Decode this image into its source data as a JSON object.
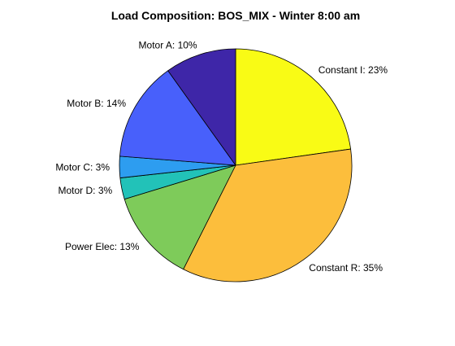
{
  "chart_data": {
    "type": "pie",
    "title": "Load Composition: BOS_MIX - Winter 8:00 am",
    "start_angle_deg": 90,
    "direction": "clockwise",
    "slices": [
      {
        "label": "Constant I: 23%",
        "value": 23,
        "color": "#f9fb15"
      },
      {
        "label": "Constant R: 35%",
        "value": 35,
        "color": "#fcbe3c"
      },
      {
        "label": "Power Elec: 13%",
        "value": 13,
        "color": "#7ecb5a"
      },
      {
        "label": "Motor D: 3%",
        "value": 3,
        "color": "#22c2b8"
      },
      {
        "label": "Motor C: 3%",
        "value": 3,
        "color": "#2d9df0"
      },
      {
        "label": "Motor B: 14%",
        "value": 14,
        "color": "#4860fb"
      },
      {
        "label": "Motor A: 10%",
        "value": 10,
        "color": "#3e26a8"
      }
    ]
  }
}
